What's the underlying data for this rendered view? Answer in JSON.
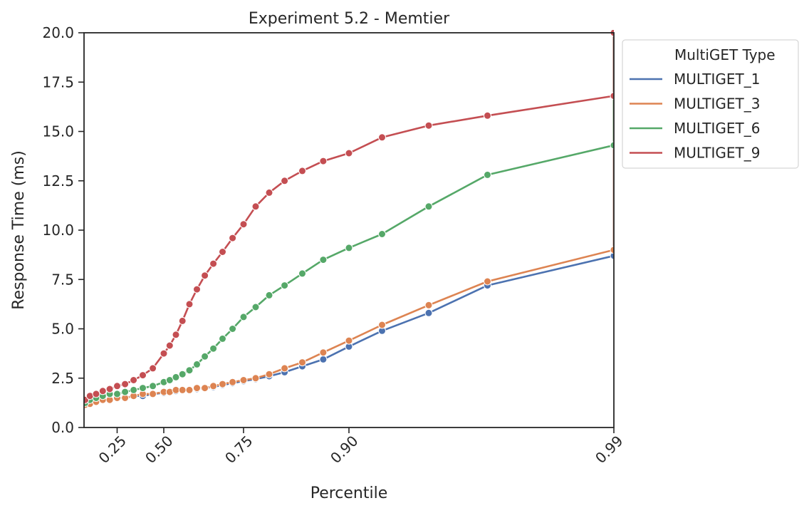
{
  "chart_data": {
    "type": "line",
    "title": "Experiment 5.2 - Memtier",
    "xlabel": "Percentile",
    "ylabel": "Response Time (ms)",
    "xlim": [
      0,
      1
    ],
    "ylim": [
      0,
      20
    ],
    "x_ticks": [
      0.25,
      0.5,
      0.75,
      0.9,
      0.99
    ],
    "x_tick_labels": [
      "0.25",
      "0.50",
      "0.75",
      "0.90",
      "0.99"
    ],
    "y_ticks": [
      0,
      2.5,
      5,
      7.5,
      10,
      12.5,
      15,
      17.5,
      20
    ],
    "y_tick_labels": [
      "0.0",
      "2.5",
      "5.0",
      "7.5",
      "10.0",
      "12.5",
      "15.0",
      "17.5",
      "20.0"
    ],
    "legend": {
      "title": "MultiGET Type",
      "placement": "outside-upper-right"
    },
    "markers": true,
    "series": [
      {
        "name": "MULTIGET_1",
        "color": "#4c72b0",
        "x": [
          0.01,
          0.05,
          0.1,
          0.15,
          0.2,
          0.25,
          0.3,
          0.35,
          0.4,
          0.45,
          0.5,
          0.525,
          0.55,
          0.575,
          0.6,
          0.625,
          0.65,
          0.675,
          0.7,
          0.725,
          0.75,
          0.775,
          0.8,
          0.825,
          0.85,
          0.875,
          0.9,
          0.925,
          0.95,
          0.97,
          0.99,
          1.0
        ],
        "y": [
          1.2,
          1.3,
          1.3,
          1.4,
          1.4,
          1.5,
          1.5,
          1.6,
          1.6,
          1.7,
          1.75,
          1.8,
          1.85,
          1.9,
          1.9,
          1.95,
          2.0,
          2.05,
          2.15,
          2.25,
          2.35,
          2.45,
          2.6,
          2.8,
          3.1,
          3.45,
          4.1,
          4.9,
          5.8,
          7.2,
          8.7,
          20.0
        ]
      },
      {
        "name": "MULTIGET_3",
        "color": "#dd8452",
        "x": [
          0.01,
          0.05,
          0.1,
          0.15,
          0.2,
          0.25,
          0.3,
          0.35,
          0.4,
          0.45,
          0.5,
          0.525,
          0.55,
          0.575,
          0.6,
          0.625,
          0.65,
          0.675,
          0.7,
          0.725,
          0.75,
          0.775,
          0.8,
          0.825,
          0.85,
          0.875,
          0.9,
          0.925,
          0.95,
          0.97,
          0.99,
          1.0
        ],
        "y": [
          1.15,
          1.2,
          1.3,
          1.4,
          1.4,
          1.5,
          1.5,
          1.6,
          1.7,
          1.7,
          1.8,
          1.8,
          1.9,
          1.9,
          1.9,
          2.0,
          2.0,
          2.1,
          2.2,
          2.3,
          2.4,
          2.5,
          2.7,
          3.0,
          3.3,
          3.8,
          4.4,
          5.2,
          6.2,
          7.4,
          9.0,
          20.0
        ]
      },
      {
        "name": "MULTIGET_6",
        "color": "#55a868",
        "x": [
          0.01,
          0.05,
          0.1,
          0.15,
          0.2,
          0.25,
          0.3,
          0.35,
          0.4,
          0.45,
          0.5,
          0.525,
          0.55,
          0.575,
          0.6,
          0.625,
          0.65,
          0.675,
          0.7,
          0.725,
          0.75,
          0.775,
          0.8,
          0.825,
          0.85,
          0.875,
          0.9,
          0.925,
          0.95,
          0.97,
          0.99,
          1.0
        ],
        "y": [
          1.25,
          1.4,
          1.5,
          1.6,
          1.7,
          1.7,
          1.8,
          1.9,
          2.0,
          2.1,
          2.3,
          2.4,
          2.55,
          2.7,
          2.9,
          3.2,
          3.6,
          4.0,
          4.5,
          5.0,
          5.6,
          6.1,
          6.7,
          7.2,
          7.8,
          8.5,
          9.1,
          9.8,
          11.2,
          12.8,
          14.3,
          20.0
        ]
      },
      {
        "name": "MULTIGET_9",
        "color": "#c44e52",
        "x": [
          0.01,
          0.05,
          0.1,
          0.15,
          0.2,
          0.25,
          0.3,
          0.35,
          0.4,
          0.45,
          0.5,
          0.525,
          0.55,
          0.575,
          0.6,
          0.625,
          0.65,
          0.675,
          0.7,
          0.725,
          0.75,
          0.775,
          0.8,
          0.825,
          0.85,
          0.875,
          0.9,
          0.925,
          0.95,
          0.97,
          0.99,
          1.0
        ],
        "y": [
          1.4,
          1.6,
          1.7,
          1.85,
          1.95,
          2.1,
          2.2,
          2.4,
          2.65,
          3.0,
          3.75,
          4.15,
          4.7,
          5.4,
          6.25,
          7.0,
          7.7,
          8.3,
          8.9,
          9.6,
          10.3,
          11.2,
          11.9,
          12.5,
          13.0,
          13.5,
          13.9,
          14.7,
          15.3,
          15.8,
          16.8,
          20.0
        ]
      }
    ]
  }
}
